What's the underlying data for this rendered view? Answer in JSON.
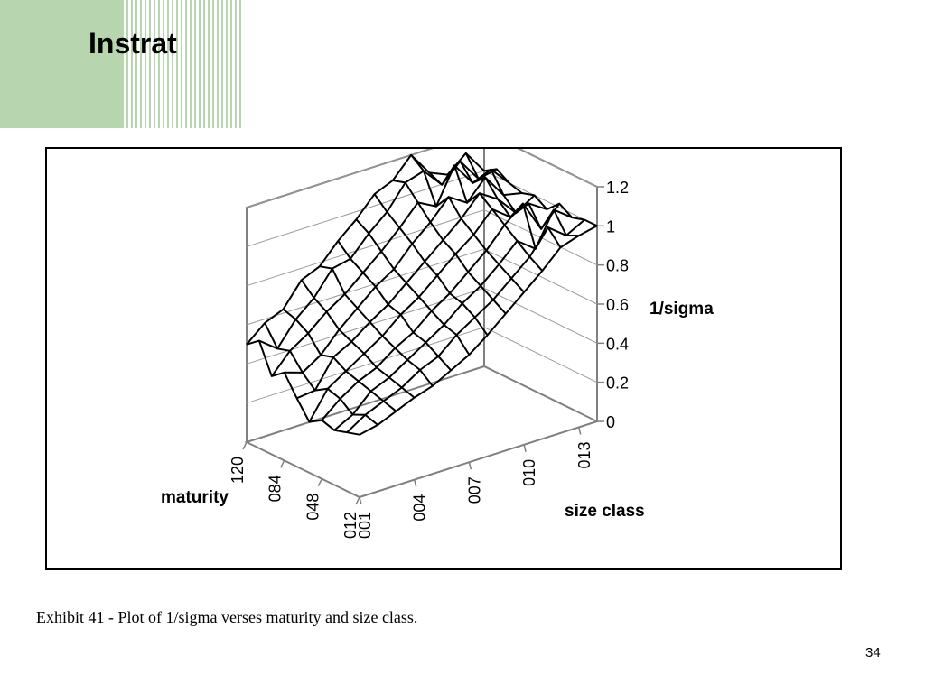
{
  "slide": {
    "title": "Instrat",
    "caption": "Exhibit 41 - Plot of 1/sigma verses maturity and size class.",
    "page_number": "34",
    "accent_color": "#b7d6b0"
  },
  "chart_data": {
    "type": "surface",
    "title": "",
    "zlabel": "1/sigma",
    "xlabel": "size class",
    "ylabel": "maturity",
    "zlim": [
      0,
      1.2
    ],
    "z_ticks": [
      "0",
      "0.2",
      "0.4",
      "0.6",
      "0.8",
      "1",
      "1.2"
    ],
    "size_class_ticks": [
      "001",
      "004",
      "007",
      "010",
      "013"
    ],
    "maturity_ticks": [
      "012",
      "048",
      "084",
      "120"
    ],
    "grid": true,
    "size_class_count": 14,
    "maturity_count": 10,
    "z": [
      [
        0.32,
        0.34,
        0.38,
        0.42,
        0.45,
        0.5,
        0.55,
        0.62,
        0.7,
        0.78,
        0.86,
        0.95,
        0.98,
        1.0
      ],
      [
        0.3,
        0.36,
        0.4,
        0.44,
        0.5,
        0.54,
        0.62,
        0.68,
        0.74,
        0.82,
        0.9,
        1.02,
        0.95,
        1.0
      ],
      [
        0.28,
        0.33,
        0.42,
        0.46,
        0.52,
        0.58,
        0.64,
        0.72,
        0.78,
        0.86,
        0.95,
        0.88,
        1.05,
        0.98
      ],
      [
        0.3,
        0.38,
        0.44,
        0.48,
        0.55,
        0.6,
        0.68,
        0.74,
        0.82,
        0.9,
        1.0,
        1.08,
        0.92,
        1.02
      ],
      [
        0.26,
        0.4,
        0.46,
        0.52,
        0.58,
        0.66,
        0.72,
        0.8,
        0.88,
        0.95,
        1.05,
        0.98,
        1.02,
        0.96
      ],
      [
        0.35,
        0.36,
        0.5,
        0.55,
        0.62,
        0.68,
        0.76,
        0.84,
        0.92,
        1.0,
        1.1,
        1.04,
        0.94,
        1.0
      ],
      [
        0.45,
        0.42,
        0.48,
        0.58,
        0.66,
        0.74,
        0.8,
        0.9,
        0.98,
        1.08,
        1.02,
        1.12,
        1.0,
        0.98
      ],
      [
        0.4,
        0.5,
        0.56,
        0.64,
        0.7,
        0.78,
        0.86,
        0.95,
        1.05,
        1.0,
        1.18,
        1.06,
        1.1,
        1.0
      ],
      [
        0.55,
        0.48,
        0.6,
        0.68,
        0.8,
        0.82,
        0.92,
        1.0,
        1.12,
        1.15,
        1.05,
        1.14,
        1.02,
        1.04
      ],
      [
        0.5,
        0.58,
        0.62,
        0.74,
        0.78,
        0.88,
        0.96,
        1.06,
        1.1,
        1.2,
        1.08,
        1.04,
        1.12,
        1.0
      ]
    ]
  }
}
